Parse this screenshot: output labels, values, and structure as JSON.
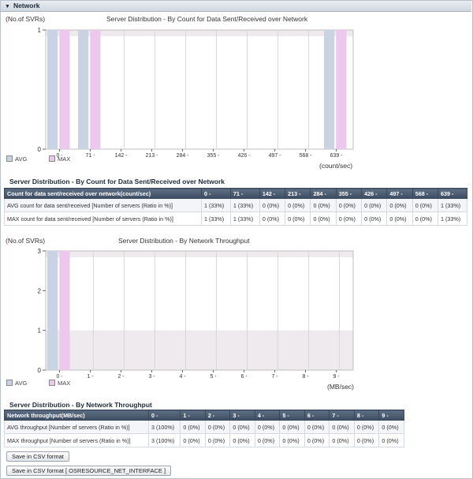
{
  "section": {
    "title": "Network",
    "toggle_icon": "triangle-down-icon"
  },
  "colors": {
    "avg": "#c9d3e2",
    "max": "#ecc9ec",
    "band": "#eeeaee"
  },
  "chart1": {
    "title": "Server Distribution - By Count for Data Sent/Received over Network",
    "ylabel": "(No.of SVRs)",
    "xunit": "(count/sec)",
    "legend": [
      "AVG",
      "MAX"
    ]
  },
  "chart2": {
    "title": "Server Distribution - By Network Throughput",
    "ylabel": "(No.of SVRs)",
    "xunit": "(MB/sec)",
    "legend": [
      "AVG",
      "MAX"
    ]
  },
  "chart_data": [
    {
      "type": "bar",
      "title": "Server Distribution - By Count for Data Sent/Received over Network",
      "ylabel": "(No.of SVRs)",
      "xlabel": "(count/sec)",
      "categories": [
        "0 -",
        "71 -",
        "142 -",
        "213 -",
        "284 -",
        "355 -",
        "426 -",
        "497 -",
        "568 -",
        "639 -"
      ],
      "series": [
        {
          "name": "AVG",
          "values": [
            1,
            1,
            0,
            0,
            0,
            0,
            0,
            0,
            0,
            1
          ]
        },
        {
          "name": "MAX",
          "values": [
            1,
            1,
            0,
            0,
            0,
            0,
            0,
            0,
            0,
            1
          ]
        }
      ],
      "ylim": [
        0,
        1
      ],
      "yticks": [
        "0",
        "1"
      ]
    },
    {
      "type": "bar",
      "title": "Server Distribution - By Network Throughput",
      "ylabel": "(No.of SVRs)",
      "xlabel": "(MB/sec)",
      "categories": [
        "0 -",
        "1 -",
        "2 -",
        "3 -",
        "4 -",
        "5 -",
        "6 -",
        "7 -",
        "8 -",
        "9 -"
      ],
      "series": [
        {
          "name": "AVG",
          "values": [
            3,
            0,
            0,
            0,
            0,
            0,
            0,
            0,
            0,
            0
          ]
        },
        {
          "name": "MAX",
          "values": [
            3,
            0,
            0,
            0,
            0,
            0,
            0,
            0,
            0,
            0
          ]
        }
      ],
      "ylim": [
        0,
        3
      ],
      "yticks": [
        "0",
        "1",
        "2",
        "3"
      ]
    }
  ],
  "table1": {
    "title": "Server Distribution - By Count for Data Sent/Received over Network",
    "headers": [
      "Count for data sent/received over network(count/sec)",
      "0 -",
      "71 -",
      "142 -",
      "213 -",
      "284 -",
      "355 -",
      "426 -",
      "497 -",
      "568 -",
      "639 -"
    ],
    "rows": [
      [
        "AVG count for data sent/received [Number of servers (Ratio in %)]",
        "1 (33%)",
        "1 (33%)",
        "0 (0%)",
        "0 (0%)",
        "0 (0%)",
        "0 (0%)",
        "0 (0%)",
        "0 (0%)",
        "0 (0%)",
        "1 (33%)"
      ],
      [
        "MAX count for data sent/received [Number of servers (Ratio in %)]",
        "1 (33%)",
        "1 (33%)",
        "0 (0%)",
        "0 (0%)",
        "0 (0%)",
        "0 (0%)",
        "0 (0%)",
        "0 (0%)",
        "0 (0%)",
        "1 (33%)"
      ]
    ]
  },
  "table2": {
    "title": "Server Distribution - By Network Throughput",
    "headers": [
      "Network throughput(MB/sec)",
      "0 -",
      "1 -",
      "2 -",
      "3 -",
      "4 -",
      "5 -",
      "6 -",
      "7 -",
      "8 -",
      "9 -"
    ],
    "rows": [
      [
        "AVG throughput [Number of servers (Ratio in %)]",
        "3 (100%)",
        "0 (0%)",
        "0 (0%)",
        "0 (0%)",
        "0 (0%)",
        "0 (0%)",
        "0 (0%)",
        "0 (0%)",
        "0 (0%)",
        "0 (0%)"
      ],
      [
        "MAX throughput [Number of servers (Ratio in %)]",
        "3 (100%)",
        "0 (0%)",
        "0 (0%)",
        "0 (0%)",
        "0 (0%)",
        "0 (0%)",
        "0 (0%)",
        "0 (0%)",
        "0 (0%)",
        "0 (0%)"
      ]
    ]
  },
  "buttons": {
    "save_csv": "Save in CSV format",
    "save_csv_iface": "Save in CSV format [ OSRESOURCE_NET_INTERFACE ]"
  }
}
